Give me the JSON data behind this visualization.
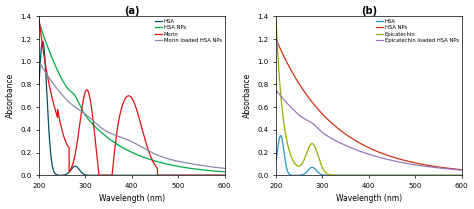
{
  "title_a": "(a)",
  "title_b": "(b)",
  "xlabel": "Wavelength (nm)",
  "ylabel": "Absorbance",
  "xlim": [
    200,
    600
  ],
  "ylim": [
    0,
    1.4
  ],
  "yticks": [
    0.0,
    0.2,
    0.4,
    0.6,
    0.8,
    1.0,
    1.2,
    1.4
  ],
  "xticks": [
    200,
    300,
    400,
    500,
    600
  ],
  "legend_a": [
    "HSA",
    "HSA NPs",
    "Morin",
    "Morin loaded HSA NPs"
  ],
  "colors_a": [
    "#005060",
    "#00aa44",
    "#dd1111",
    "#8888aa"
  ],
  "legend_b": [
    "HSA",
    "HSA NPs",
    "Epicatechin",
    "Epicatechin loaded HSA NPs"
  ],
  "colors_b": [
    "#2299cc",
    "#cc3311",
    "#99aa00",
    "#9977bb"
  ]
}
